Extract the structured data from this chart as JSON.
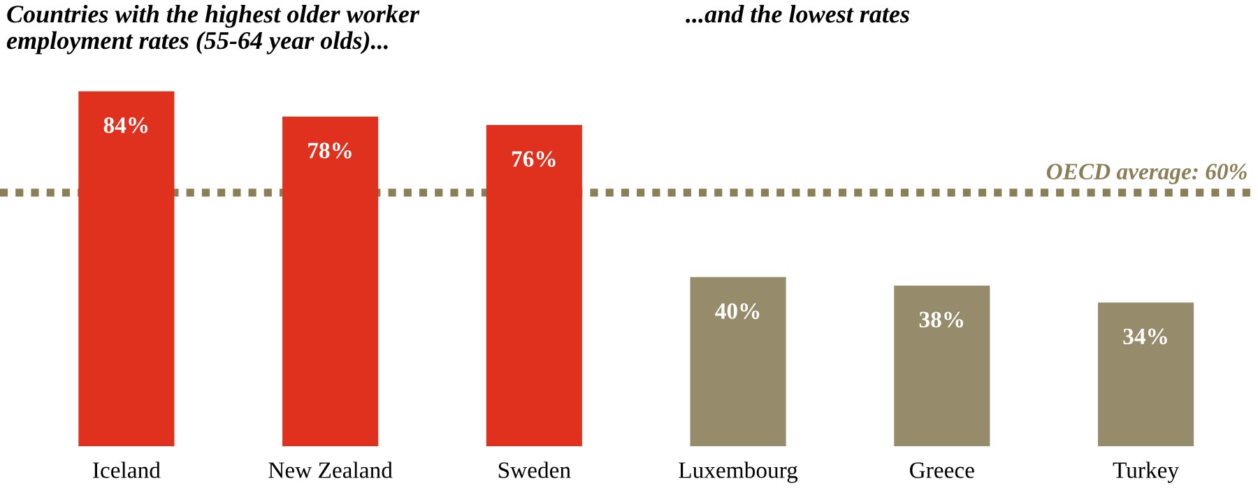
{
  "chart_data": {
    "type": "bar",
    "title": "Countries with the highest older worker\nemployment rates (55-64 year olds)...",
    "subtitle": "...and the lowest rates",
    "categories": [
      "Iceland",
      "New Zealand",
      "Sweden",
      "Luxembourg",
      "Greece",
      "Turkey"
    ],
    "values": [
      84,
      78,
      76,
      40,
      38,
      34
    ],
    "colors": [
      "#e0301e",
      "#e0301e",
      "#e0301e",
      "#968b6b",
      "#968b6b",
      "#968b6b"
    ],
    "value_labels": [
      "84%",
      "78%",
      "76%",
      "40%",
      "38%",
      "34%"
    ],
    "ref_lines": [
      {
        "axis": "y",
        "value": 60,
        "label": "OECD average: 60%",
        "color": "#8c7e56",
        "line_style": "dotted"
      }
    ],
    "grid": false,
    "legend": false
  }
}
